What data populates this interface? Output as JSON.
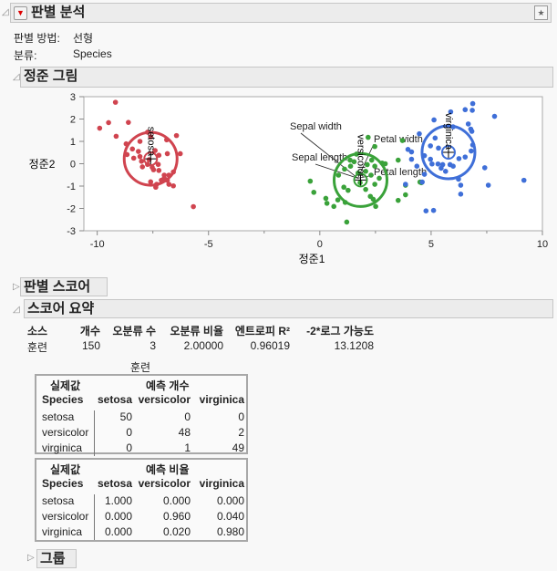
{
  "report": {
    "title": "판별 분석",
    "method_label": "판별 방법:",
    "method_value": "선형",
    "class_label": "분류:",
    "class_value": "Species"
  },
  "canonical_plot": {
    "title": "정준 그림"
  },
  "discriminant_scores": {
    "title": "판별 스코어"
  },
  "score_summary": {
    "title": "스코어 요약",
    "headers": [
      "소스",
      "개수",
      "오분류 수",
      "오분류 비율",
      "엔트로피 R²",
      "-2*로그 가능도"
    ],
    "row": [
      "훈련",
      "150",
      "3",
      "2.00000",
      "0.96019",
      "13.1208"
    ],
    "training_label": "훈련",
    "count_table": {
      "actual_label": "실제값",
      "pred_label": "예측 개수",
      "col_head": [
        "Species",
        "setosa",
        "versicolor",
        "virginica"
      ],
      "rows": [
        [
          "setosa",
          "50",
          "0",
          "0"
        ],
        [
          "versicolor",
          "0",
          "48",
          "2"
        ],
        [
          "virginica",
          "0",
          "1",
          "49"
        ]
      ]
    },
    "rate_table": {
      "actual_label": "실제값",
      "pred_label": "예측 비율",
      "col_head": [
        "Species",
        "setosa",
        "versicolor",
        "virginica"
      ],
      "rows": [
        [
          "setosa",
          "1.000",
          "0.000",
          "0.000"
        ],
        [
          "versicolor",
          "0.000",
          "0.960",
          "0.040"
        ],
        [
          "virginica",
          "0.000",
          "0.020",
          "0.980"
        ]
      ]
    }
  },
  "groups": {
    "title": "그룹"
  },
  "chart_data": {
    "type": "scatter",
    "xlabel": "정준1",
    "ylabel": "정준2",
    "xlim": [
      -10.6,
      10
    ],
    "ylim": [
      -3,
      3
    ],
    "xticks": [
      "-10",
      "-5",
      "0",
      "5",
      "10"
    ],
    "yticks": [
      "3",
      "2",
      "1",
      "0",
      "-1",
      "-2",
      "-3"
    ],
    "rays": [
      "Sepal width",
      "Petal width",
      "Sepal length",
      "Petal length"
    ],
    "series": [
      {
        "name": "setosa",
        "color": "#d0444f",
        "center": [
          -7.6,
          0.22
        ],
        "points": [
          [
            -9.18,
            2.75
          ],
          [
            -9.89,
            1.59
          ],
          [
            -9.49,
            1.84
          ],
          [
            -8.6,
            1.85
          ],
          [
            -9.15,
            1.23
          ],
          [
            -8.7,
            0.89
          ],
          [
            -8.66,
            0.41
          ],
          [
            -8.36,
            0.25
          ],
          [
            -8.42,
            0.66
          ],
          [
            -8.15,
            0.55
          ],
          [
            -8.08,
            1.0
          ],
          [
            -7.74,
            1.41
          ],
          [
            -7.6,
            1.2
          ],
          [
            -8.08,
            0.32
          ],
          [
            -8.01,
            0.11
          ],
          [
            -7.97,
            -0.14
          ],
          [
            -7.74,
            -0.03
          ],
          [
            -7.53,
            -0.16
          ],
          [
            -7.67,
            0.18
          ],
          [
            -7.4,
            0.59
          ],
          [
            -7.23,
            0.38
          ],
          [
            -7.26,
            -0.03
          ],
          [
            -7.23,
            -0.3
          ],
          [
            -7.47,
            -0.27
          ],
          [
            -6.85,
            0.45
          ],
          [
            -6.88,
            1.07
          ],
          [
            -6.44,
            1.26
          ],
          [
            -6.27,
            0.45
          ],
          [
            -6.58,
            -0.37
          ],
          [
            -6.78,
            -0.51
          ],
          [
            -6.99,
            -0.64
          ],
          [
            -7.12,
            -0.74
          ],
          [
            -6.85,
            -0.74
          ],
          [
            -6.78,
            -0.92
          ],
          [
            -6.58,
            -0.99
          ],
          [
            -7.6,
            -0.81
          ],
          [
            -7.33,
            -0.92
          ],
          [
            -7.37,
            -1.05
          ],
          [
            -5.68,
            -1.92
          ],
          [
            -6.99,
            -0.51
          ]
        ]
      },
      {
        "name": "versicolor",
        "color": "#3aa23a",
        "center": [
          1.83,
          -0.73
        ],
        "points": [
          [
            -0.43,
            -0.78
          ],
          [
            -0.27,
            -1.28
          ],
          [
            0.27,
            -1.55
          ],
          [
            0.32,
            -1.77
          ],
          [
            0.63,
            -1.91
          ],
          [
            0.81,
            -1.62
          ],
          [
            1.14,
            -1.73
          ],
          [
            1.21,
            -2.61
          ],
          [
            1.27,
            -1.19
          ],
          [
            1.08,
            -1.05
          ],
          [
            0.84,
            -0.51
          ],
          [
            1.11,
            -0.24
          ],
          [
            1.38,
            -0.11
          ],
          [
            1.36,
            0.16
          ],
          [
            1.54,
            0.09
          ],
          [
            2.13,
            -0.04
          ],
          [
            2.47,
            0.77
          ],
          [
            2.17,
            1.18
          ],
          [
            2.8,
            0.03
          ],
          [
            2.94,
            0
          ],
          [
            3.52,
            0.16
          ],
          [
            3.71,
            1.04
          ],
          [
            2.47,
            -0.11
          ],
          [
            2.67,
            -0.65
          ],
          [
            2.47,
            -0.92
          ],
          [
            2.27,
            -1.46
          ],
          [
            2.4,
            -1.59
          ],
          [
            2.51,
            -1.91
          ],
          [
            3.52,
            -1.64
          ],
          [
            3.85,
            -1.39
          ],
          [
            3.85,
            -0.96
          ],
          [
            2.06,
            -1.15
          ],
          [
            2.3,
            -0.51
          ],
          [
            1.81,
            -0.85
          ],
          [
            2.06,
            -0.34
          ],
          [
            1.72,
            -0.42
          ],
          [
            2.33,
            0.16
          ],
          [
            1.65,
            0.43
          ],
          [
            4.56,
            -0.85
          ],
          [
            4.5,
            -0.82
          ]
        ]
      },
      {
        "name": "virginica",
        "color": "#3f6fd8",
        "center": [
          5.78,
          0.51
        ],
        "points": [
          [
            6.87,
            2.69
          ],
          [
            6.85,
            2.39
          ],
          [
            6.53,
            2.42
          ],
          [
            5.88,
            2.32
          ],
          [
            5.13,
            1.96
          ],
          [
            7.85,
            2.12
          ],
          [
            6.67,
            1.78
          ],
          [
            6.78,
            1.55
          ],
          [
            6.83,
            1.45
          ],
          [
            5.99,
            1.65
          ],
          [
            4.47,
            1.34
          ],
          [
            5.18,
            1.15
          ],
          [
            4.97,
            0.8
          ],
          [
            3.96,
            0.64
          ],
          [
            4.12,
            0.53
          ],
          [
            4.12,
            0.2
          ],
          [
            4.7,
            0.36
          ],
          [
            4.97,
            0.2
          ],
          [
            5.04,
            -0.01
          ],
          [
            5.31,
            -0.01
          ],
          [
            5.52,
            -0.04
          ],
          [
            5.45,
            -0.2
          ],
          [
            5.65,
            -0.34
          ],
          [
            5.33,
            0.7
          ],
          [
            5.85,
            -0.04
          ],
          [
            5.99,
            -0.11
          ],
          [
            6.25,
            0.23
          ],
          [
            6.53,
            0.3
          ],
          [
            6.8,
            0.57
          ],
          [
            6.87,
            0.84
          ],
          [
            4.36,
            -0.11
          ],
          [
            4.7,
            -0.47
          ],
          [
            4.6,
            -0.82
          ],
          [
            3.85,
            -0.92
          ],
          [
            6.23,
            -0.69
          ],
          [
            6.33,
            -0.96
          ],
          [
            6.33,
            -1.36
          ],
          [
            7.41,
            -0.18
          ],
          [
            7.57,
            -0.96
          ],
          [
            9.17,
            -0.74
          ],
          [
            4.77,
            -2.11
          ],
          [
            5.11,
            -2.09
          ]
        ]
      }
    ]
  }
}
